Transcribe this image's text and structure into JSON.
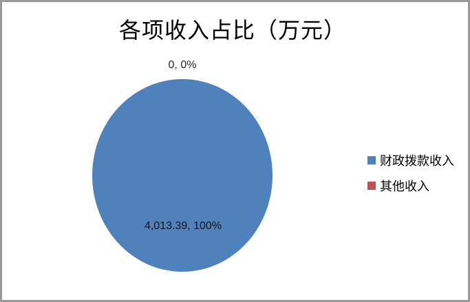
{
  "window": {
    "background": "#ffffff",
    "border_color": "#999999"
  },
  "chart_data": {
    "type": "pie",
    "title": "各项收入占比（万元）",
    "legend_position": "right",
    "unit": "万元",
    "slices": [
      {
        "label": "财政拨款收入",
        "value": 4013.39,
        "percent": 100,
        "color": "#4F81BD",
        "data_label": "4,013.39, 100%",
        "data_label_position": "inside-bottom"
      },
      {
        "label": "其他收入",
        "value": 0,
        "percent": 0,
        "color": "#C0504D",
        "data_label": "0, 0%",
        "data_label_position": "outside-top"
      }
    ]
  }
}
